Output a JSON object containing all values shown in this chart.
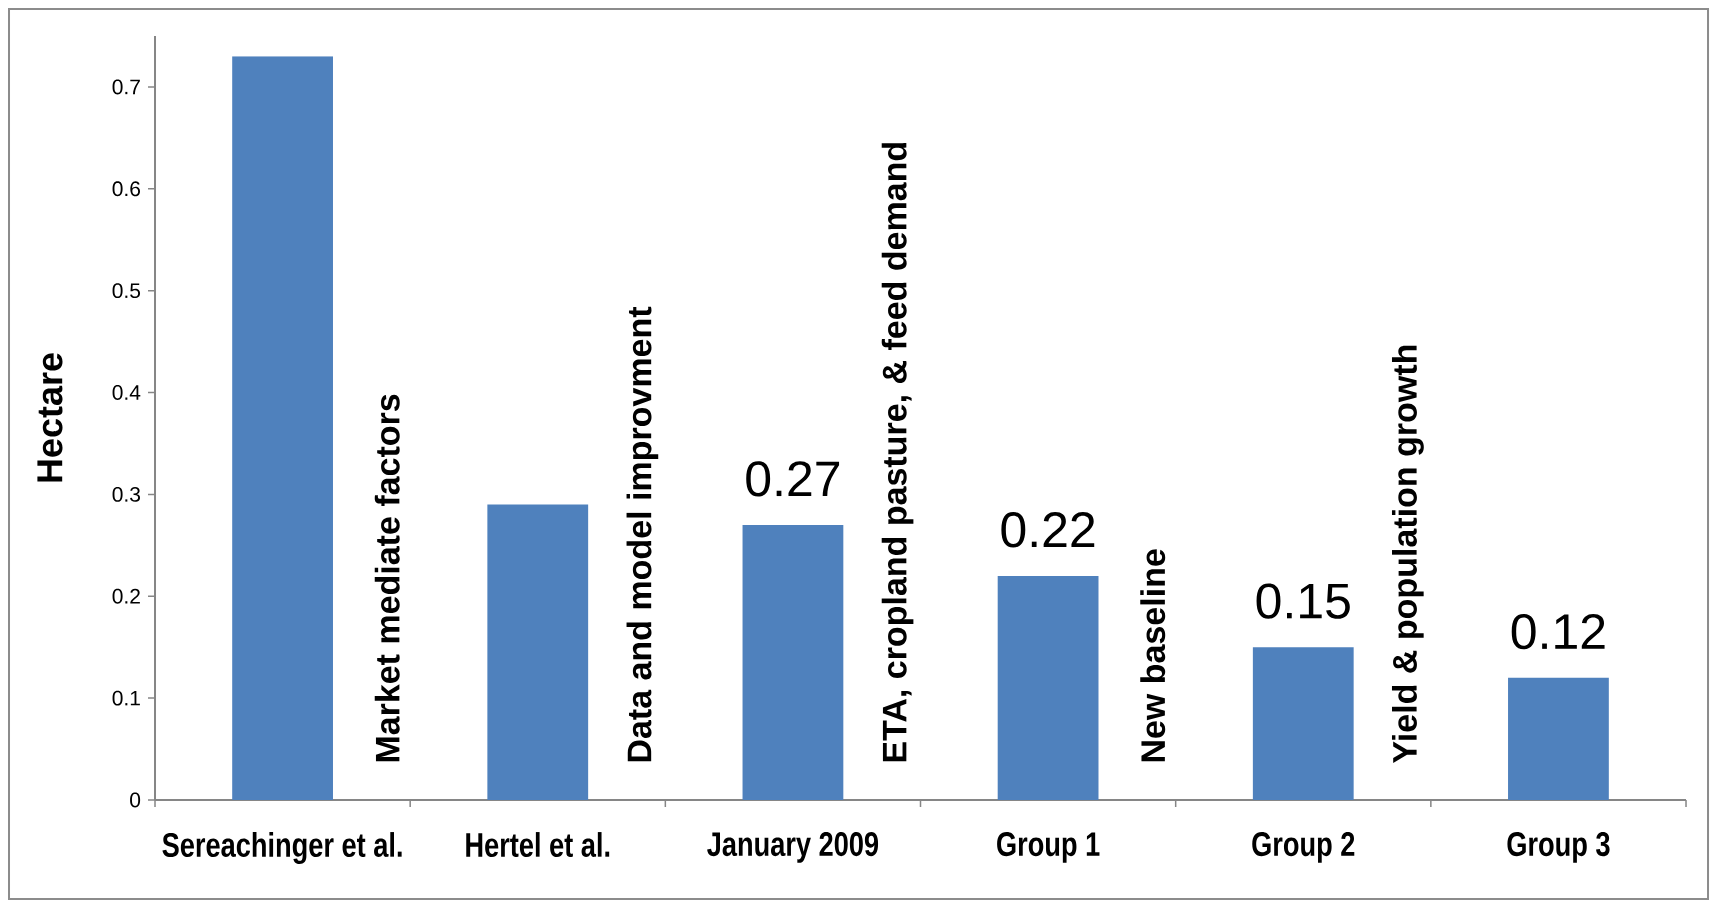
{
  "chart_data": {
    "type": "bar",
    "ylabel": "Hectare",
    "categories": [
      "Sereachinger et al.",
      "Hertel et al.",
      "January 2009",
      "Group 1",
      "Group 2",
      "Group 3"
    ],
    "values": [
      0.73,
      0.29,
      0.27,
      0.22,
      0.15,
      0.12
    ],
    "color": "#4f81bd",
    "value_labels": [
      null,
      null,
      "0.27",
      "0.22",
      "0.15",
      "0.12"
    ],
    "ylim": [
      0,
      0.75
    ],
    "yticks": [
      0,
      0.1,
      0.2,
      0.3,
      0.4,
      0.5,
      0.6,
      0.7
    ],
    "annotations": [
      "Market mediate factors",
      "Data and model improvment",
      "ETA, cropland pasture, & feed demand",
      "New baseline",
      "Yield & population growth"
    ]
  }
}
